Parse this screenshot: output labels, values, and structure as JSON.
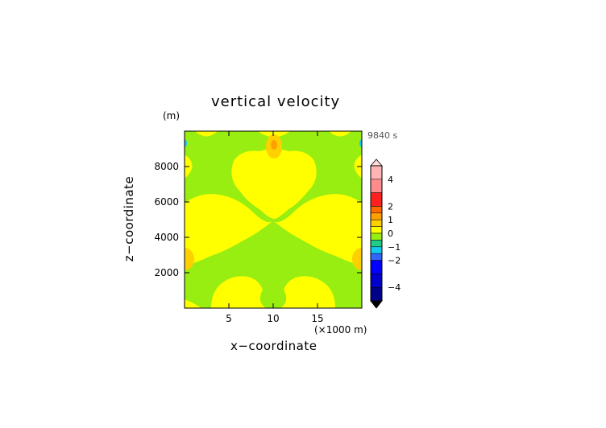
{
  "chart_data": {
    "type": "heatmap",
    "title": "vertical velocity",
    "time_label": "9840 s",
    "xlabel": "x−coordinate",
    "ylabel": "z−coordinate",
    "x_unit": "(×1000 m)",
    "y_unit": "(m)",
    "xlim": [
      0,
      20
    ],
    "ylim": [
      0,
      10000
    ],
    "x_ticks": [
      5,
      10,
      15
    ],
    "x_tick_labels": [
      "5",
      "10",
      "15"
    ],
    "y_ticks": [
      2000,
      4000,
      6000,
      8000
    ],
    "y_tick_labels": [
      "2000",
      "4000",
      "6000",
      "8000"
    ],
    "colorbar": {
      "range": [
        -5,
        5
      ],
      "labels": [
        "4",
        "2",
        "1",
        "0",
        "−1",
        "−2",
        "−4"
      ],
      "label_values": [
        4,
        2,
        1,
        0,
        -1,
        -2,
        -4
      ],
      "bands": [
        {
          "from": 4,
          "to": 5,
          "color": "#ffb4b4"
        },
        {
          "from": 3,
          "to": 4,
          "color": "#ff8c8c"
        },
        {
          "from": 2,
          "to": 3,
          "color": "#ff2020"
        },
        {
          "from": 1.5,
          "to": 2,
          "color": "#ff6a00"
        },
        {
          "from": 1,
          "to": 1.5,
          "color": "#ffa000"
        },
        {
          "from": 0.5,
          "to": 1,
          "color": "#ffd000"
        },
        {
          "from": 0,
          "to": 0.5,
          "color": "#ffff00"
        },
        {
          "from": -0.5,
          "to": 0,
          "color": "#99ee11"
        },
        {
          "from": -1,
          "to": -0.5,
          "color": "#22cc88"
        },
        {
          "from": -1.5,
          "to": -1,
          "color": "#11c8ee"
        },
        {
          "from": -2,
          "to": -1.5,
          "color": "#3366ff"
        },
        {
          "from": -3,
          "to": -2,
          "color": "#0000ff"
        },
        {
          "from": -4,
          "to": -3,
          "color": "#0000cc"
        },
        {
          "from": -5,
          "to": -4,
          "color": "#000088"
        }
      ]
    },
    "colors": {
      "background_field": "#99ee11",
      "updraft": "#ffff00",
      "strong_updraft": "#ffd000",
      "core": "#ffa000",
      "downdraft": "#11c8ee"
    }
  }
}
